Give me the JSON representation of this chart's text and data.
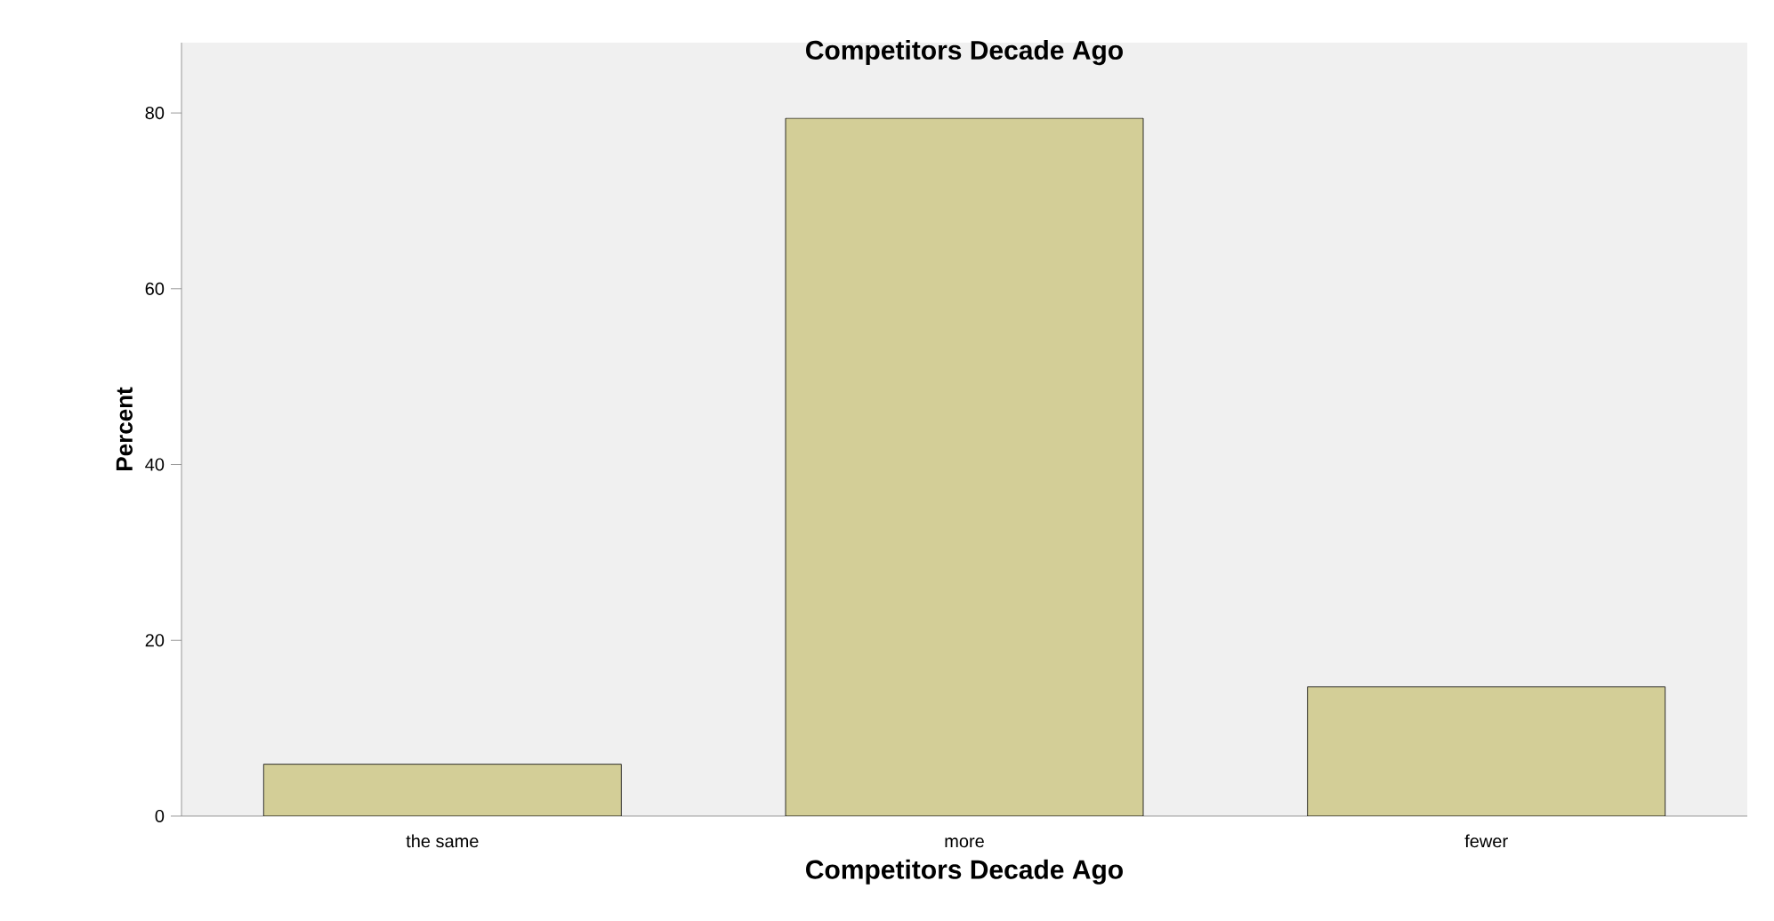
{
  "chart_data": {
    "type": "bar",
    "title": "Competitors Decade Ago",
    "xlabel": "Competitors Decade Ago",
    "ylabel": "Percent",
    "categories": [
      "the same",
      "more",
      "fewer"
    ],
    "values": [
      5.9,
      79.4,
      14.7
    ],
    "color": "#d3ce97",
    "ylim": [
      0,
      88
    ],
    "yticks": [
      0,
      20,
      40,
      60,
      80
    ],
    "grid": false
  }
}
